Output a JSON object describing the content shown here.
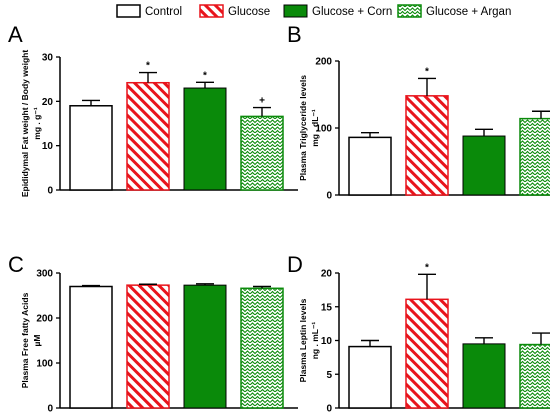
{
  "legend": [
    {
      "label": "Control",
      "style": "white"
    },
    {
      "label": "Glucose",
      "style": "red-stripe"
    },
    {
      "label": "Glucose + Corn",
      "style": "green"
    },
    {
      "label": "Glucose + Argan",
      "style": "green-wave"
    }
  ],
  "colors": {
    "red": "#e8141c",
    "green": "#0a8a0a",
    "white": "#ffffff",
    "black": "#000000"
  },
  "chart_data": [
    {
      "type": "bar",
      "panel": "A",
      "ylabel": "Epididymal Fat weight / Body weight",
      "yunit": "mg . g⁻¹",
      "ylim": [
        0,
        30
      ],
      "yticks": [
        "0",
        "10",
        "20",
        "30"
      ],
      "categories": [
        "Control",
        "Glucose",
        "Glucose + Corn",
        "Glucose + Argan"
      ],
      "values": [
        19,
        24.2,
        23,
        16.6
      ],
      "errors": [
        1.2,
        2.3,
        1.3,
        2
      ],
      "annotations": [
        "",
        "*",
        "*",
        "+"
      ]
    },
    {
      "type": "bar",
      "panel": "B",
      "ylabel": "Plasma Triglyceride levels",
      "yunit": "mg . dL⁻¹",
      "ylim": [
        0,
        200
      ],
      "yticks": [
        "0",
        "100",
        "200"
      ],
      "categories": [
        "Control",
        "Glucose",
        "Glucose + Corn",
        "Glucose + Argan"
      ],
      "values": [
        86,
        148,
        88,
        114
      ],
      "errors": [
        7,
        26,
        10,
        11
      ],
      "annotations": [
        "",
        "*",
        "",
        ""
      ]
    },
    {
      "type": "bar",
      "panel": "C",
      "ylabel": "Plasma Free fatty Acids",
      "yunit": "µM",
      "ylim": [
        0,
        300
      ],
      "yticks": [
        "0",
        "100",
        "200",
        "300"
      ],
      "categories": [
        "Control",
        "Glucose",
        "Glucose + Corn",
        "Glucose + Argan"
      ],
      "values": [
        270,
        273,
        273,
        266
      ],
      "errors": [
        2,
        2,
        3,
        4
      ],
      "annotations": [
        "",
        "",
        "",
        ""
      ]
    },
    {
      "type": "bar",
      "panel": "D",
      "ylabel": "Plasma Leptin levels",
      "yunit": "ng . mL⁻¹",
      "ylim": [
        0,
        20
      ],
      "yticks": [
        "0",
        "5",
        "10",
        "15",
        "20"
      ],
      "categories": [
        "Control",
        "Glucose",
        "Glucose + Corn",
        "Glucose + Argan"
      ],
      "values": [
        9.1,
        16.1,
        9.5,
        9.4
      ],
      "errors": [
        0.9,
        3.7,
        0.9,
        1.7
      ],
      "annotations": [
        "",
        "*",
        "",
        ""
      ]
    }
  ]
}
